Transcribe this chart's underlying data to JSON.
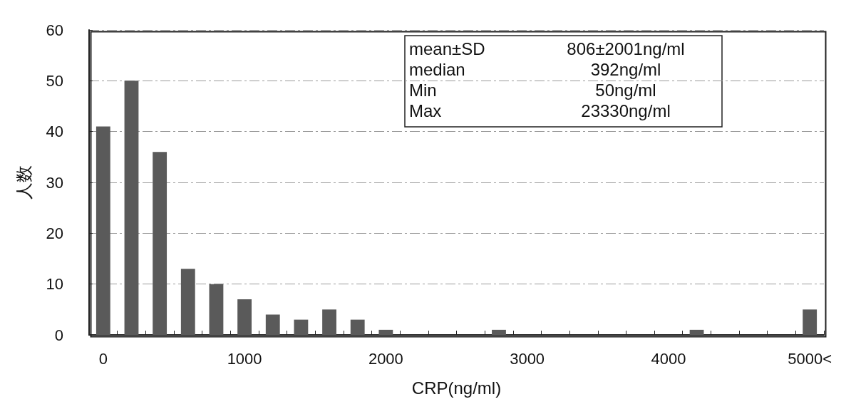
{
  "chart_data": {
    "type": "bar",
    "xlabel": "CRP(ng/ml)",
    "ylabel": "人数",
    "categories": [
      "0",
      null,
      null,
      null,
      null,
      "1000",
      null,
      null,
      null,
      null,
      "2000",
      null,
      null,
      null,
      null,
      "3000",
      null,
      null,
      null,
      null,
      "4000",
      null,
      null,
      null,
      null,
      "5000<"
    ],
    "values": [
      41,
      50,
      36,
      13,
      10,
      7,
      4,
      3,
      5,
      3,
      1,
      0,
      0,
      0,
      1,
      0,
      0,
      0,
      0,
      0,
      0,
      1,
      0,
      0,
      0,
      5
    ],
    "color": "#5a5a5a",
    "ylim": [
      0,
      60
    ],
    "yticks": [
      0,
      10,
      20,
      30,
      40,
      50,
      60
    ],
    "grid": "y",
    "annotations": [
      "mean±SD",
      "806±2001ng/ml",
      "median",
      "392ng/ml",
      "Min",
      "50ng/ml",
      "Max",
      "23330ng/ml"
    ]
  }
}
